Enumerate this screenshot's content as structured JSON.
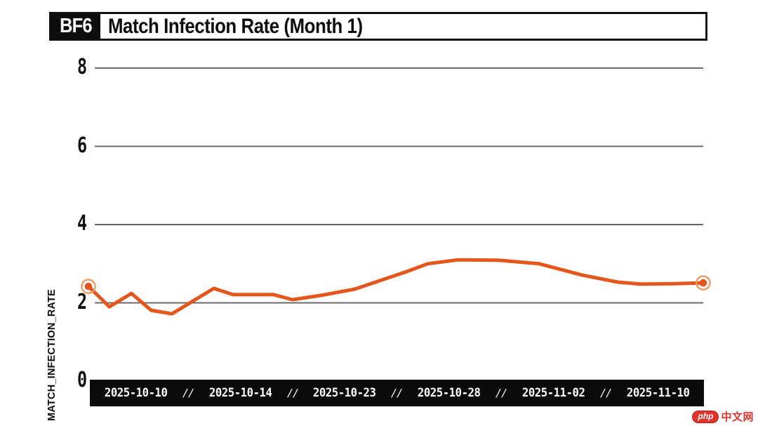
{
  "header": {
    "badge": "BF6",
    "title": "Match Infection Rate (Month 1)"
  },
  "colors": {
    "accent_line": "#e4571c",
    "endpoint_ring": "#ed9a62",
    "gridline": "#6a6a6a",
    "axis_bar": "#0b0b0b",
    "ink": "#0d0d0d"
  },
  "watermark": {
    "logo": "php",
    "text": "中文网"
  },
  "chart_data": {
    "type": "line",
    "title": "Match Infection Rate (Month 1)",
    "xlabel": "",
    "ylabel": "MATCH_INFECTION_RATE",
    "ylim": [
      0,
      8
    ],
    "yticks": [
      0,
      2,
      4,
      6,
      8
    ],
    "grid": "horizontal-only",
    "legend": "none",
    "x_tick_labels": [
      "2025-10-10",
      "2025-10-14",
      "2025-10-23",
      "2025-10-28",
      "2025-11-02",
      "2025-11-10"
    ],
    "x_tick_separator": "//",
    "series": [
      {
        "name": "match_infection_rate",
        "color": "#e4571c",
        "endpoint_markers": true,
        "points_x_frac_value": [
          [
            0.0,
            2.42
          ],
          [
            0.034,
            1.9
          ],
          [
            0.07,
            2.24
          ],
          [
            0.102,
            1.81
          ],
          [
            0.136,
            1.72
          ],
          [
            0.204,
            2.37
          ],
          [
            0.235,
            2.21
          ],
          [
            0.301,
            2.21
          ],
          [
            0.332,
            2.08
          ],
          [
            0.378,
            2.19
          ],
          [
            0.433,
            2.35
          ],
          [
            0.518,
            2.8
          ],
          [
            0.552,
            3.0
          ],
          [
            0.601,
            3.1
          ],
          [
            0.667,
            3.09
          ],
          [
            0.733,
            3.0
          ],
          [
            0.803,
            2.71
          ],
          [
            0.861,
            2.53
          ],
          [
            0.897,
            2.48
          ],
          [
            0.952,
            2.49
          ],
          [
            1.0,
            2.51
          ]
        ]
      }
    ]
  }
}
